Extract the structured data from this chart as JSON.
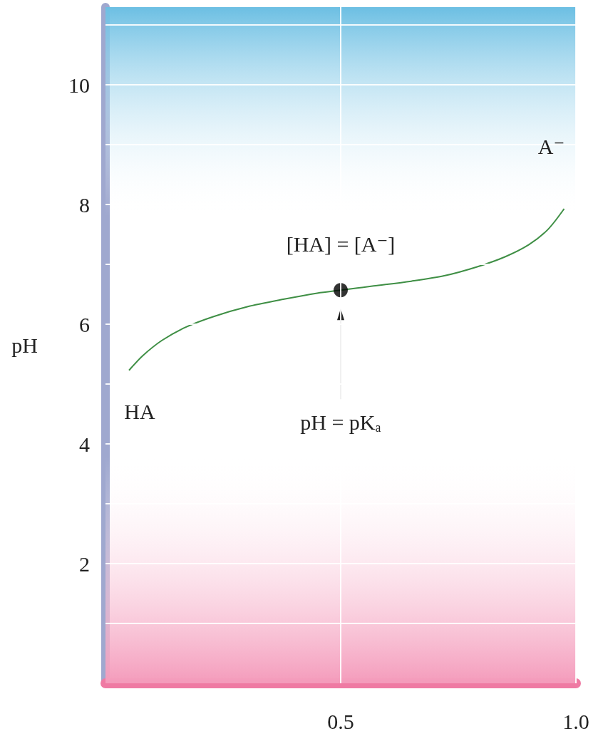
{
  "chart_data": {
    "type": "line",
    "ylabel": "pH",
    "xlim": [
      0,
      1
    ],
    "xticks": [
      0.5,
      {
        "value": 1,
        "label": "1.0"
      }
    ],
    "ylim": [
      0,
      11.3
    ],
    "yticks": [
      {
        "value": 1,
        "label": null
      },
      2,
      {
        "value": 3,
        "label": null
      },
      4,
      {
        "value": 5,
        "label": null
      },
      6,
      {
        "value": 7,
        "label": null
      },
      8,
      {
        "value": 9,
        "label": null
      },
      10,
      {
        "value": 11,
        "label": null
      }
    ],
    "grid": true,
    "series": [
      {
        "color": "#3f8f45",
        "marker": "none",
        "x": [
          0.05,
          0.08,
          0.12,
          0.17,
          0.23,
          0.3,
          0.38,
          0.45,
          0.5,
          0.57,
          0.65,
          0.72,
          0.79,
          0.85,
          0.9,
          0.94,
          0.975
        ],
        "values": [
          5.23,
          5.48,
          5.73,
          5.95,
          6.13,
          6.29,
          6.42,
          6.52,
          6.57,
          6.64,
          6.72,
          6.81,
          6.96,
          7.13,
          7.33,
          7.58,
          7.93
        ]
      },
      {
        "type": "scatter",
        "color": "#000000",
        "marker": "circle",
        "x": [
          0.5
        ],
        "values": [
          6.57
        ]
      }
    ],
    "bands": [
      {
        "axis": "y",
        "from": 7.8,
        "to": 11.3,
        "color": "#6cbfe3"
      },
      {
        "axis": "y",
        "from": 0,
        "to": 3.8,
        "color": "#f49bbb"
      }
    ],
    "annotations": [
      {
        "text": "A⁻",
        "x": 0.975,
        "y": 7.93
      },
      {
        "text": "[HA] = [A⁻]",
        "x": 0.5,
        "y": 6.57
      },
      {
        "text": "HA",
        "x": 0.05,
        "y": 5.23
      },
      "pH = pKₐ"
    ]
  }
}
